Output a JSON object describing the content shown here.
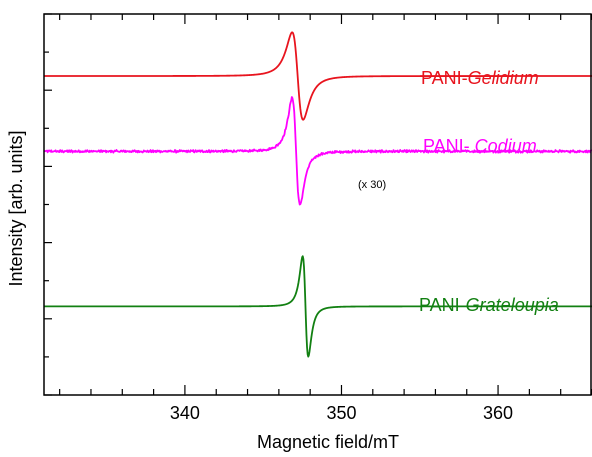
{
  "chart_data": {
    "type": "line",
    "title": "",
    "xlabel": "Magnetic field/mT",
    "ylabel": "Intensity [arb. units]",
    "xlim": [
      331,
      366
    ],
    "x_ticks_major": [
      340,
      350,
      360
    ],
    "x_tick_labels": [
      "340",
      "350",
      "360"
    ],
    "x_ticks_minor_step": 2,
    "y_ticks_visible_labels": false,
    "grid": false,
    "legend": "none (inline series labels at right)",
    "series": [
      {
        "name": "PANI-Gelidium",
        "label_prefix": "PANI-",
        "label_italic": "Gelidium",
        "color": "#e8141e",
        "baseline": 0.72,
        "center": 347.2,
        "width": 0.35,
        "amplitude": 0.27,
        "noise": 0,
        "note": ""
      },
      {
        "name": "PANI- Codium",
        "label_prefix": "PANI- ",
        "label_italic": "Codium",
        "color": "#ff00ff",
        "baseline": 0.38,
        "center": 347.1,
        "width": 0.25,
        "amplitude": 0.33,
        "noise": 0.004,
        "note": "(x 30)"
      },
      {
        "name": "PANI-Grateloupia",
        "label_prefix": "PANI-",
        "label_italic": "Grateloupia",
        "color": "#128012",
        "baseline": -0.32,
        "center": 347.7,
        "width": 0.18,
        "amplitude": 0.31,
        "noise": 0,
        "note": ""
      }
    ]
  }
}
